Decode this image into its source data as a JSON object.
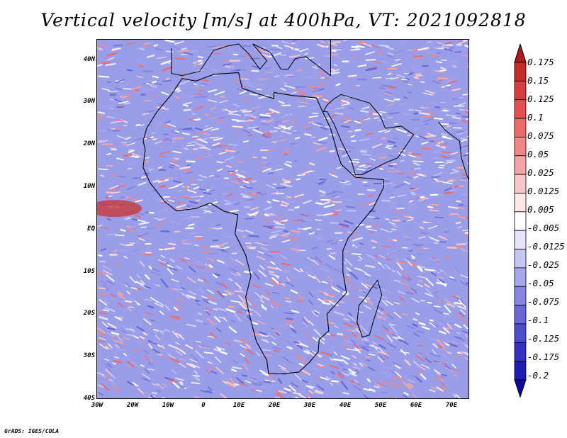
{
  "title": "Vertical velocity [m/s] at 400hPa, VT: 2021092818",
  "credit": "GrADS: IGES/COLA",
  "map": {
    "lon_range": [
      -30,
      75
    ],
    "lat_range": [
      -40,
      45
    ],
    "lat_ticks": [
      "40N",
      "30N",
      "20N",
      "10N",
      "EQ",
      "10S",
      "20S",
      "30S",
      "40S"
    ],
    "lon_ticks": [
      "30W",
      "20W",
      "10W",
      "0",
      "10E",
      "20E",
      "30E",
      "40E",
      "50E",
      "60E",
      "70E"
    ],
    "background_fill": "#9a9ee8",
    "coastline_color": "#000000"
  },
  "colorbar": {
    "labels": [
      "0.175",
      "0.15",
      "0.125",
      "0.1",
      "0.075",
      "0.05",
      "0.025",
      "0.0125",
      "0.005",
      "-0.005",
      "-0.0125",
      "-0.025",
      "-0.05",
      "-0.075",
      "-0.1",
      "-0.125",
      "-0.175",
      "-0.2"
    ],
    "colors": [
      "#b11a1a",
      "#c82a2a",
      "#d83c3c",
      "#e45050",
      "#ec6a6a",
      "#f08686",
      "#f4a4a4",
      "#f8c6c6",
      "#fde8e8",
      "#ffffff",
      "#e4e4fa",
      "#c6c6f2",
      "#a6a6ea",
      "#8686e0",
      "#6868d6",
      "#4c4ccc",
      "#3232c0",
      "#1c1cb0",
      "#0a0aa0"
    ]
  }
}
